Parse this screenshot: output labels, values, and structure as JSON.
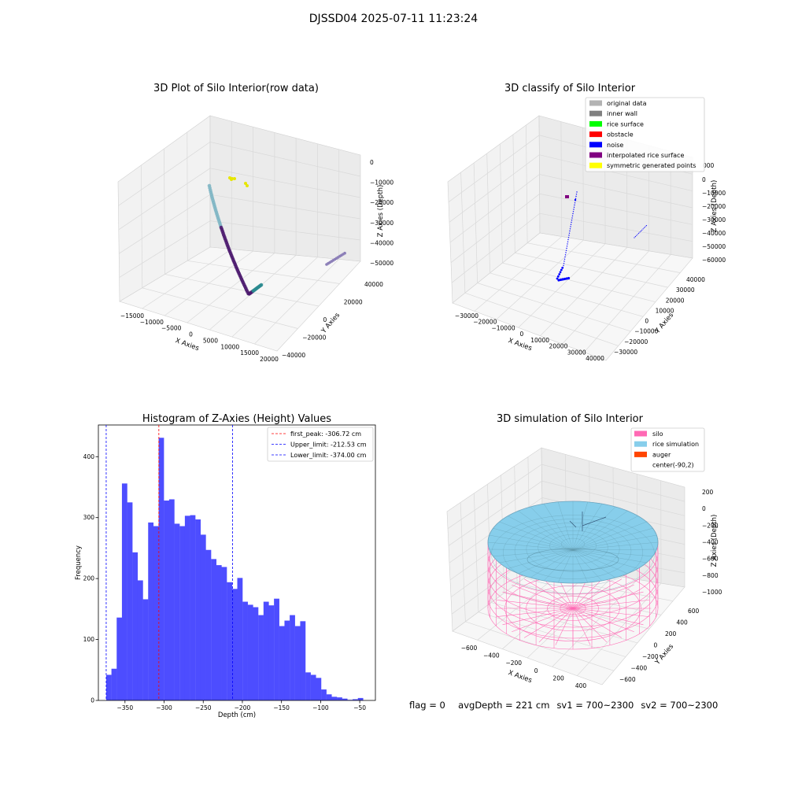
{
  "suptitle": "DJSSD04 2025-07-11 11:23:24",
  "status": {
    "flag": "flag = 0",
    "avg_depth": "avgDepth = 221 cm",
    "sv1": "sv1 = 700~2300",
    "sv2": "sv2 = 700~2300"
  },
  "colors": {
    "hist_bar": "#4d4dff",
    "first_peak": "#ff0000",
    "limit_line": "#0000ff",
    "original_data": "#b3b3b3",
    "inner_wall": "#808080",
    "rice_surface": "#00ff00",
    "obstacle": "#ff0000",
    "noise": "#0000ff",
    "interpolated": "#800080",
    "symmetric": "#ffff00",
    "silo": "#ff69b4",
    "rice_sim": "#87ceeb",
    "auger": "#ff4500"
  },
  "chart_data": [
    {
      "type": "scatter",
      "subtype": "3d",
      "title": "3D Plot of Silo Interior(row data)",
      "xlabel": "X Axies",
      "ylabel": "Y Axies",
      "zlabel": "Z Axies (Depth)",
      "x_ticks": [
        "−15000",
        "−10000",
        "−5000",
        "0",
        "5000",
        "10000",
        "15000",
        "20000"
      ],
      "y_ticks": [
        "−40000",
        "−20000",
        "0",
        "20000",
        "40000"
      ],
      "z_ticks": [
        "0",
        "−10000",
        "−20000",
        "−30000",
        "−40000",
        "−50000"
      ]
    },
    {
      "type": "scatter",
      "subtype": "3d",
      "title": "3D classify of Silo Interior",
      "xlabel": "X Axies",
      "ylabel": "Y Axies",
      "zlabel": "Z Axies (Depth)",
      "x_ticks": [
        "−30000",
        "−20000",
        "−10000",
        "0",
        "10000",
        "20000",
        "30000",
        "40000"
      ],
      "y_ticks": [
        "−30000",
        "−20000",
        "−10000",
        "0",
        "10000",
        "20000",
        "30000",
        "40000"
      ],
      "z_ticks": [
        "0",
        "−10000",
        "−20000",
        "−30000",
        "−40000",
        "−50000",
        "−60000"
      ],
      "z_tick_partial": "000",
      "legend": [
        "original data",
        "inner wall",
        "rice surface",
        "obstacle",
        "noise",
        "interpolated rice surface",
        "symmetric generated points"
      ],
      "legend_position": "top-right"
    },
    {
      "type": "bar",
      "subtype": "histogram",
      "title": "Histogram of Z-Axies (Height) Values",
      "xlabel": "Depth (cm)",
      "ylabel": "Frequency",
      "bin_start": -374,
      "bin_width": 6.7,
      "xlim": [
        -384,
        -30
      ],
      "ylim": [
        0,
        452
      ],
      "x_ticks": [
        -350,
        -300,
        -250,
        -200,
        -150,
        -100,
        -50
      ],
      "x_tick_labels": [
        "−350",
        "−300",
        "−250",
        "−200",
        "−150",
        "−100",
        "−50"
      ],
      "y_ticks": [
        0,
        100,
        200,
        300,
        400
      ],
      "y_tick_labels": [
        "0",
        "100",
        "200",
        "300",
        "400"
      ],
      "values": [
        42,
        52,
        136,
        356,
        325,
        243,
        197,
        166,
        292,
        286,
        431,
        328,
        330,
        290,
        286,
        303,
        304,
        297,
        272,
        247,
        232,
        222,
        219,
        194,
        183,
        201,
        162,
        157,
        153,
        140,
        162,
        156,
        167,
        122,
        131,
        140,
        122,
        130,
        46,
        42,
        37,
        18,
        10,
        6,
        5,
        3,
        1,
        2,
        4
      ],
      "vlines": [
        {
          "label": "first_peak: -306.72 cm",
          "x": -306.72,
          "color_key": "first_peak"
        },
        {
          "label": "Upper_limit: -212.53 cm",
          "x": -212.53,
          "color_key": "limit_line"
        },
        {
          "label": "Lower_limit: -374.00 cm",
          "x": -374.0,
          "color_key": "limit_line"
        }
      ],
      "legend_position": "top-right"
    },
    {
      "type": "surface",
      "subtype": "3d",
      "title": "3D simulation of Silo Interior",
      "xlabel": "X Axies",
      "ylabel": "Y Axies",
      "zlabel": "Z Axies (Depth)",
      "x_ticks": [
        "−600",
        "−400",
        "−200",
        "0",
        "200",
        "400"
      ],
      "y_ticks": [
        "−600",
        "−400",
        "−200",
        "0",
        "200",
        "400",
        "600"
      ],
      "z_ticks": [
        "200",
        "0",
        "−200",
        "−400",
        "−600",
        "−800",
        "−1000"
      ],
      "legend": [
        "silo",
        "rice simulation",
        "auger",
        "center(-90,2)"
      ],
      "legend_position": "top-right"
    }
  ]
}
